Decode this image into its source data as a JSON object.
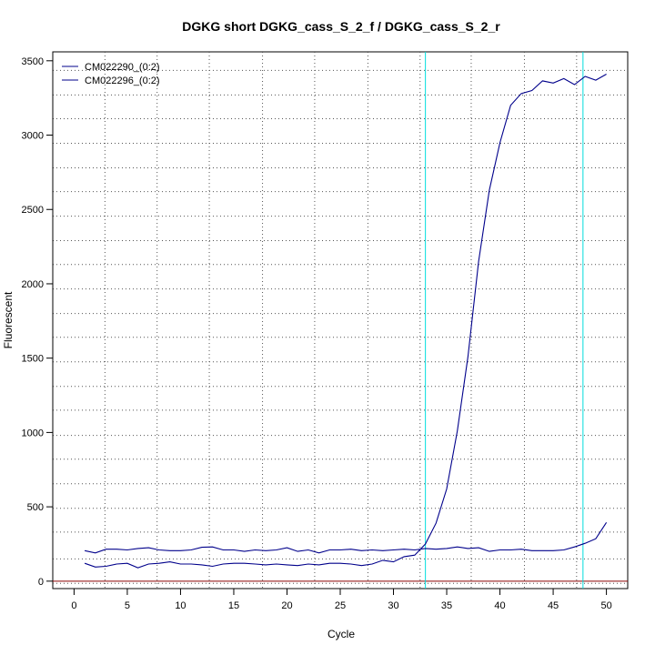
{
  "chart_data": {
    "type": "line",
    "title": "DGKG short DGKG_cass_S_2_f / DGKG_cass_S_2_r",
    "xlabel": "Cycle",
    "ylabel": "Fluorescent",
    "xlim": [
      -2,
      52
    ],
    "ylim": [
      -50,
      3560
    ],
    "xticks": [
      0,
      5,
      10,
      15,
      20,
      25,
      30,
      35,
      40,
      45,
      50
    ],
    "yticks": [
      0,
      500,
      1000,
      1500,
      2000,
      2500,
      3000,
      3500
    ],
    "grid": true,
    "grid_x": [
      2.9,
      7.8,
      12.7,
      17.7,
      22.6,
      27.6,
      32.5,
      37.3,
      42.3,
      47.2
    ],
    "grid_y": [
      -15,
      150,
      330,
      490,
      655,
      820,
      980,
      1150,
      1310,
      1475,
      1640,
      1800,
      1965,
      2130,
      2290,
      2455,
      2620,
      2780,
      2945,
      3110,
      3270,
      3435
    ],
    "legend_position": "top-left",
    "series": [
      {
        "name": "CM022290_(0:2)",
        "color": "#00008B",
        "x": [
          1,
          2,
          3,
          4,
          5,
          6,
          7,
          8,
          9,
          10,
          11,
          12,
          13,
          14,
          15,
          16,
          17,
          18,
          19,
          20,
          21,
          22,
          23,
          24,
          25,
          26,
          27,
          28,
          29,
          30,
          31,
          32,
          33,
          34,
          35,
          36,
          37,
          38,
          39,
          40,
          41,
          42,
          43,
          44,
          45,
          46,
          47,
          48,
          49,
          50
        ],
        "y": [
          205,
          190,
          215,
          215,
          210,
          220,
          225,
          210,
          205,
          205,
          210,
          228,
          230,
          210,
          210,
          200,
          210,
          205,
          210,
          225,
          200,
          210,
          190,
          210,
          210,
          215,
          205,
          210,
          205,
          210,
          215,
          210,
          220,
          215,
          220,
          230,
          220,
          225,
          200,
          210,
          210,
          215,
          205,
          205,
          205,
          210,
          230,
          255,
          285,
          395
        ]
      },
      {
        "name": "CM022296_(0:2)",
        "color": "#00008B",
        "x": [
          1,
          2,
          3,
          4,
          5,
          6,
          7,
          8,
          9,
          10,
          11,
          12,
          13,
          14,
          15,
          16,
          17,
          18,
          19,
          20,
          21,
          22,
          23,
          24,
          25,
          26,
          27,
          28,
          29,
          30,
          31,
          32,
          33,
          34,
          35,
          36,
          37,
          38,
          39,
          40,
          41,
          42,
          43,
          44,
          45,
          46,
          47,
          48,
          49,
          50
        ],
        "y": [
          120,
          95,
          100,
          115,
          120,
          90,
          115,
          120,
          130,
          115,
          115,
          110,
          100,
          115,
          120,
          120,
          115,
          110,
          115,
          110,
          105,
          115,
          110,
          120,
          120,
          115,
          105,
          115,
          140,
          130,
          165,
          175,
          250,
          390,
          620,
          1010,
          1510,
          2150,
          2630,
          2950,
          3200,
          3280,
          3300,
          3365,
          3350,
          3380,
          3340,
          3395,
          3370,
          3410
        ]
      }
    ],
    "threshold_line": {
      "y": 0,
      "color": "#8B0000"
    },
    "vertical_markers": [
      {
        "x": 33.0,
        "color": "#00DDDD"
      },
      {
        "x": 47.8,
        "color": "#00DDDD"
      }
    ]
  }
}
